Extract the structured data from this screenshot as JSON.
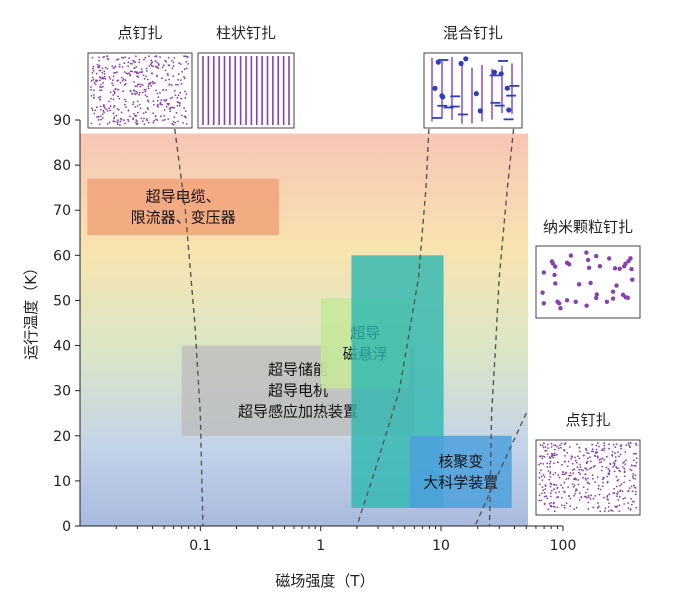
{
  "chart_data": {
    "type": "area",
    "xlabel": "磁场强度（T）",
    "ylabel": "运行温度（K）",
    "xscale": "log",
    "xlim": [
      0.01,
      100
    ],
    "ylim": [
      0,
      90
    ],
    "x_ticks": [
      {
        "value": 0.1,
        "label": "0.1"
      },
      {
        "value": 1,
        "label": "1"
      },
      {
        "value": 10,
        "label": "10"
      },
      {
        "value": 100,
        "label": "100"
      }
    ],
    "y_ticks": [
      0,
      10,
      20,
      30,
      40,
      50,
      60,
      70,
      80,
      90
    ],
    "background_gradient": [
      "#f7c6b4",
      "#f8e4b0",
      "#dbe6c6",
      "#c3d3e8",
      "#a9badf"
    ],
    "applications": [
      {
        "label_lines": [
          "超导电缆、",
          "限流器、变压器"
        ],
        "x_range": [
          0.0115,
          0.45
        ],
        "y_range": [
          64.5,
          77
        ],
        "color": "#f2a27a",
        "opacity": 0.85
      },
      {
        "label_lines": [
          "超导储能",
          "超导电机",
          "超导感应加热装置"
        ],
        "x_range": [
          0.07,
          6
        ],
        "y_range": [
          20,
          40
        ],
        "color": "#bdbdbd",
        "opacity": 0.8
      },
      {
        "label_lines": [
          "超导",
          "磁悬浮"
        ],
        "x_range": [
          1,
          5.5
        ],
        "y_range": [
          30.5,
          50.5
        ],
        "color": "#c7e89a",
        "opacity": 0.9
      },
      {
        "label_lines": [],
        "x_range": [
          1.8,
          10.5
        ],
        "y_range": [
          4,
          60
        ],
        "color": "#2cb7b0",
        "opacity": 0.8
      },
      {
        "label_lines": [
          "核聚变",
          "大科学装置"
        ],
        "x_range": [
          5.5,
          38
        ],
        "y_range": [
          4,
          20
        ],
        "color": "#4ca0dd",
        "opacity": 0.85
      }
    ],
    "pinning_boundaries": [
      {
        "points": [
          [
            0.06,
            90
          ],
          [
            0.075,
            70
          ],
          [
            0.09,
            45
          ],
          [
            0.1,
            25
          ],
          [
            0.105,
            0
          ]
        ]
      },
      {
        "points": [
          [
            8,
            90
          ],
          [
            7.5,
            75
          ],
          [
            6.5,
            55
          ],
          [
            4.5,
            30
          ],
          [
            2.8,
            12
          ],
          [
            2,
            0
          ]
        ]
      },
      {
        "points": [
          [
            40,
            90
          ],
          [
            35,
            75
          ],
          [
            30,
            55
          ],
          [
            28,
            40
          ],
          [
            26,
            25
          ],
          [
            25,
            0
          ]
        ]
      },
      {
        "points": [
          [
            50,
            25
          ],
          [
            30,
            12
          ],
          [
            19,
            0
          ]
        ]
      }
    ],
    "pinning_insets": [
      {
        "title": "点钉扎",
        "pattern": "dots"
      },
      {
        "title": "柱状钉扎",
        "pattern": "columns"
      },
      {
        "title": "混合钉扎",
        "pattern": "mixed"
      },
      {
        "title": "纳米颗粒钉扎",
        "pattern": "nanoparticles"
      },
      {
        "title": "点钉扎",
        "pattern": "dots"
      }
    ],
    "colors": {
      "pin_dot": "#8a3fb0",
      "pin_column": "#8a3fb0",
      "mixed_dot": "#2b3fbf",
      "dash": "#555555"
    }
  }
}
